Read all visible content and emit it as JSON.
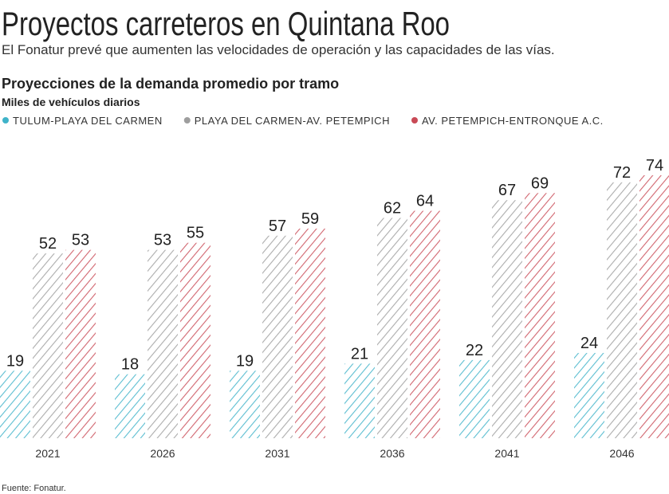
{
  "chart_data": {
    "type": "bar",
    "title": "Proyectos carreteros en Quintana Roo",
    "subtitle": "El Fonatur prevé que aumenten las velocidades de operación y las capacidades de las vías.",
    "heading": "Proyecciones de la demanda promedio por tramo",
    "unit_label": "Miles de vehículos diarios",
    "source": "Fuente: Fonatur.",
    "categories": [
      "2021",
      "2026",
      "2031",
      "2036",
      "2041",
      "2046"
    ],
    "series": [
      {
        "name": "TULUM-PLAYA DEL CARMEN",
        "color": "#3fb3c9",
        "values": [
          19,
          18,
          19,
          21,
          22,
          24
        ]
      },
      {
        "name": "PLAYA DEL CARMEN-AV. PETEMPICH",
        "color": "#9e9e9e",
        "values": [
          52,
          53,
          57,
          62,
          67,
          72
        ]
      },
      {
        "name": "AV. PETEMPICH-ENTRONQUE A.C.",
        "color": "#c94a56",
        "values": [
          53,
          55,
          59,
          64,
          69,
          74
        ]
      }
    ]
  }
}
